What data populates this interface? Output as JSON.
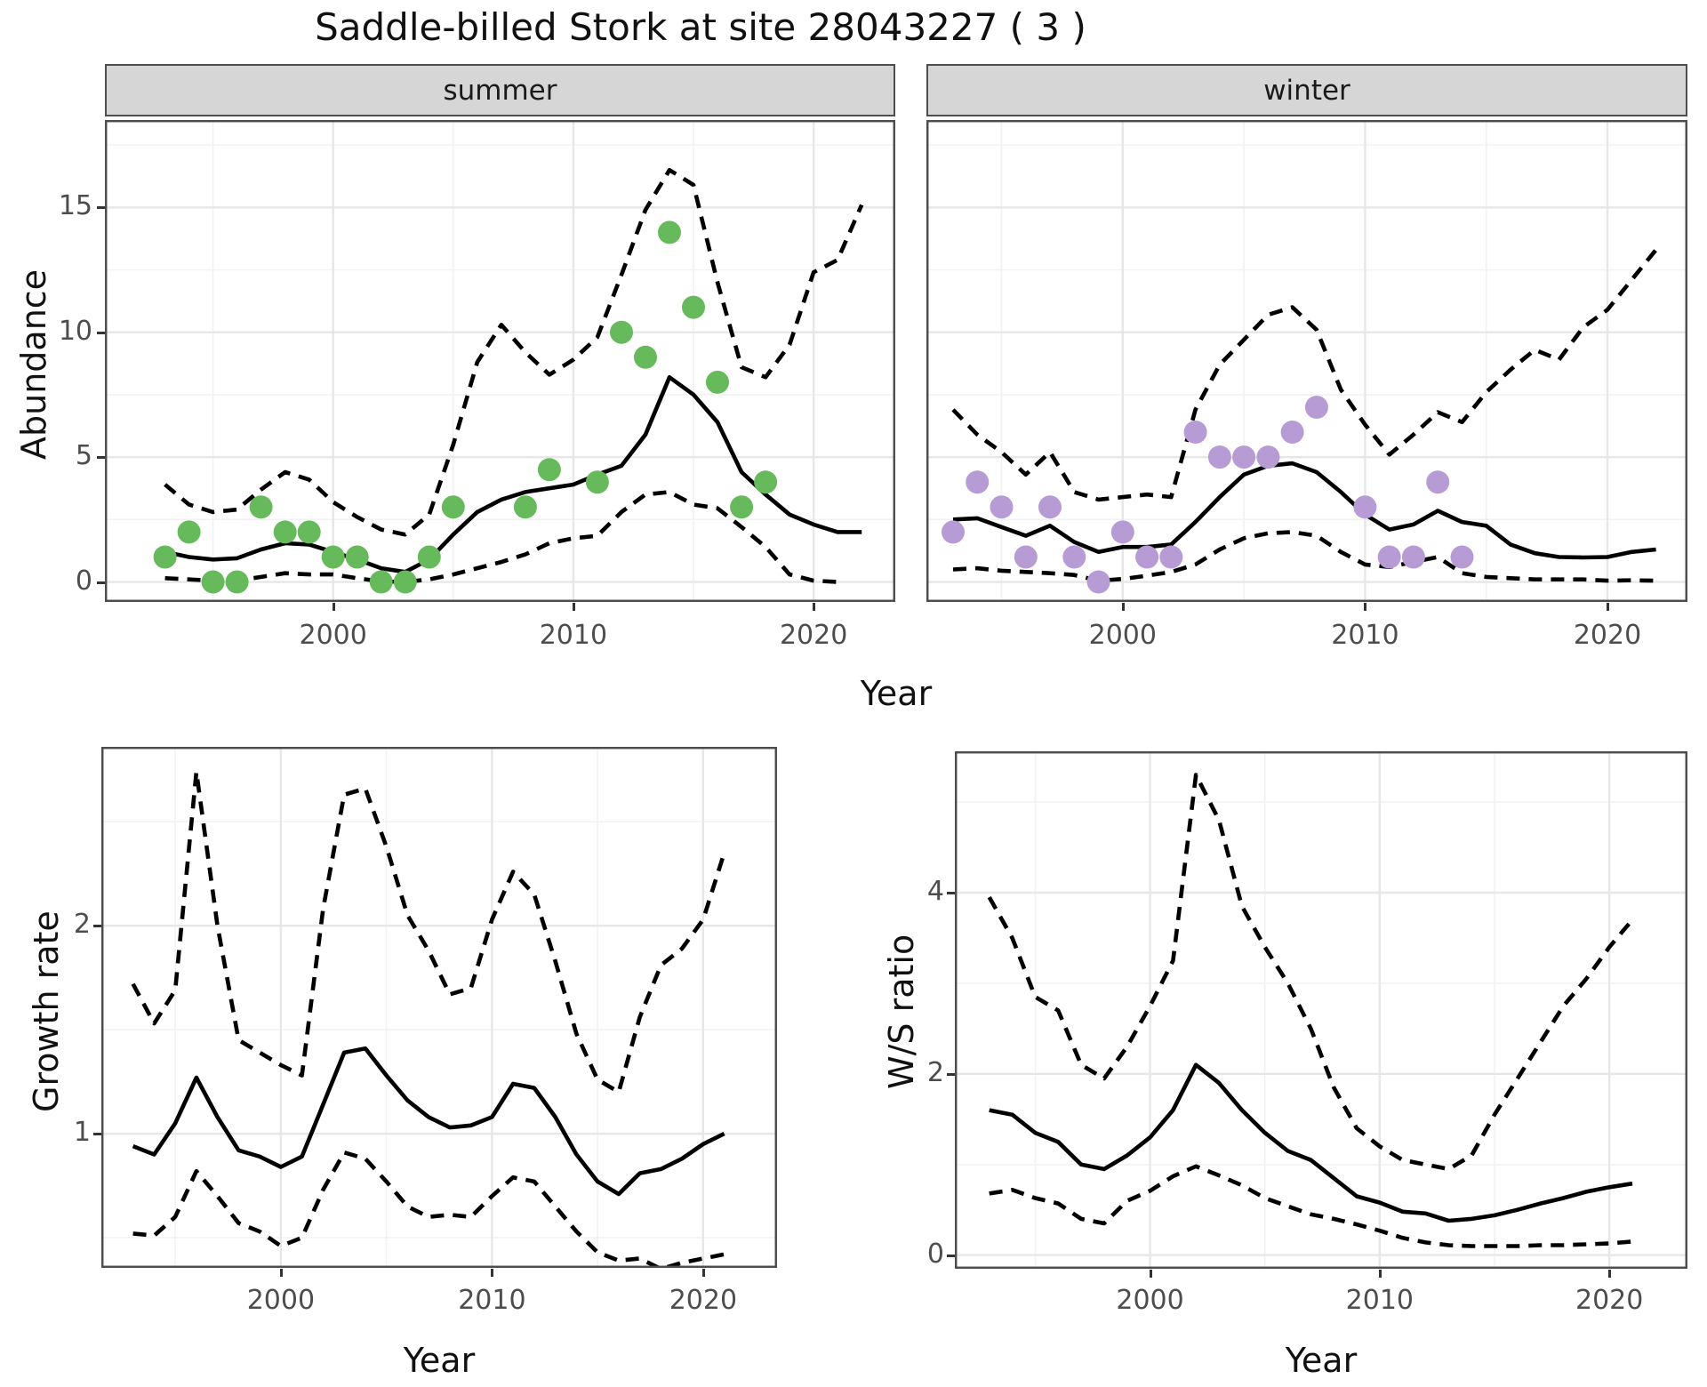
{
  "title": "Saddle-billed Stork at site 28043227 ( 3 )",
  "figure": {
    "xlabel": "Year",
    "top_row_ylabel": "Abundance",
    "facets": [
      "summer",
      "winter"
    ],
    "point_colors": {
      "summer": "#67ba5b",
      "winter": "#b79bd4"
    },
    "line_color": "#000000"
  },
  "chart_data": [
    {
      "panel": "abundance-summer",
      "type": "line",
      "facet_label": "summer",
      "xlabel": "Year",
      "ylabel": "Abundance",
      "xlim": [
        1990.5,
        2023.4
      ],
      "ylim": [
        -0.8,
        18.5
      ],
      "x_major_ticks": [
        2000,
        2010,
        2020
      ],
      "x_minor_ticks": [
        1995,
        2005,
        2015
      ],
      "y_major_ticks": [
        0,
        5,
        10,
        15
      ],
      "y_minor_ticks": [
        2.5,
        7.5,
        12.5,
        17.5
      ],
      "grid": true,
      "series": [
        {
          "name": "median_fit",
          "line": "solid",
          "years": [
            1993,
            1994,
            1995,
            1996,
            1997,
            1998,
            1999,
            2000,
            2001,
            2002,
            2003,
            2004,
            2005,
            2006,
            2007,
            2008,
            2009,
            2010,
            2011,
            2012,
            2013,
            2014,
            2015,
            2016,
            2017,
            2018,
            2019,
            2020,
            2021,
            2022
          ],
          "values": [
            1.2,
            1.0,
            0.9,
            0.95,
            1.3,
            1.55,
            1.5,
            1.2,
            0.9,
            0.55,
            0.4,
            0.9,
            1.9,
            2.8,
            3.3,
            3.6,
            3.75,
            3.9,
            4.3,
            4.65,
            5.9,
            8.2,
            7.5,
            6.4,
            4.4,
            3.5,
            2.7,
            2.3,
            2.0,
            2.0
          ]
        },
        {
          "name": "upper_ci",
          "line": "dashed",
          "years": [
            1993,
            1994,
            1995,
            1996,
            1997,
            1998,
            1999,
            2000,
            2001,
            2002,
            2003,
            2004,
            2005,
            2006,
            2007,
            2008,
            2009,
            2010,
            2011,
            2012,
            2013,
            2014,
            2015,
            2016,
            2017,
            2018,
            2019,
            2020,
            2021,
            2022
          ],
          "values": [
            3.9,
            3.1,
            2.8,
            2.9,
            3.7,
            4.4,
            4.1,
            3.2,
            2.6,
            2.1,
            1.9,
            2.7,
            5.5,
            8.8,
            10.3,
            9.2,
            8.3,
            8.9,
            9.8,
            12.3,
            14.9,
            16.5,
            15.9,
            12.0,
            8.6,
            8.2,
            9.5,
            12.4,
            12.9,
            15.1
          ]
        },
        {
          "name": "lower_ci",
          "line": "dashed",
          "years": [
            1993,
            1994,
            1995,
            1996,
            1997,
            1998,
            1999,
            2000,
            2001,
            2002,
            2003,
            2004,
            2005,
            2006,
            2007,
            2008,
            2009,
            2010,
            2011,
            2012,
            2013,
            2014,
            2015,
            2016,
            2017,
            2018,
            2019,
            2020,
            2021
          ],
          "values": [
            0.15,
            0.1,
            0.05,
            0.05,
            0.2,
            0.35,
            0.3,
            0.3,
            0.15,
            0.02,
            0.0,
            0.1,
            0.3,
            0.55,
            0.8,
            1.1,
            1.55,
            1.75,
            1.85,
            2.8,
            3.5,
            3.6,
            3.1,
            2.95,
            2.2,
            1.4,
            0.3,
            0.05,
            0.0
          ]
        }
      ],
      "points": {
        "name": "observed_counts",
        "color": "#67ba5b",
        "years": [
          1993,
          1994,
          1995,
          1996,
          1997,
          1998,
          1999,
          2000,
          2001,
          2002,
          2003,
          2004,
          2005,
          2008,
          2009,
          2011,
          2012,
          2013,
          2014,
          2015,
          2016,
          2017,
          2018
        ],
        "values": [
          1,
          2,
          0,
          0,
          3,
          2,
          2,
          1,
          1,
          0,
          0,
          1,
          3,
          3,
          4.5,
          4,
          10,
          9,
          14,
          11,
          8,
          3,
          4
        ]
      }
    },
    {
      "panel": "abundance-winter",
      "type": "line",
      "facet_label": "winter",
      "xlabel": "Year",
      "ylabel": "Abundance",
      "xlim": [
        1991.9,
        2023.3
      ],
      "ylim": [
        -0.8,
        18.5
      ],
      "x_major_ticks": [
        2000,
        2010,
        2020
      ],
      "x_minor_ticks": [
        1995,
        2005,
        2015
      ],
      "y_major_ticks": [
        0,
        5,
        10,
        15
      ],
      "y_minor_ticks": [
        2.5,
        7.5,
        12.5,
        17.5
      ],
      "grid": true,
      "series": [
        {
          "name": "median_fit",
          "line": "solid",
          "years": [
            1993,
            1994,
            1995,
            1996,
            1997,
            1998,
            1999,
            2000,
            2001,
            2002,
            2003,
            2004,
            2005,
            2006,
            2007,
            2008,
            2009,
            2010,
            2011,
            2012,
            2013,
            2014,
            2015,
            2016,
            2017,
            2018,
            2019,
            2020,
            2021,
            2022
          ],
          "values": [
            2.5,
            2.55,
            2.2,
            1.85,
            2.25,
            1.6,
            1.2,
            1.4,
            1.4,
            1.5,
            2.4,
            3.4,
            4.3,
            4.65,
            4.75,
            4.4,
            3.6,
            2.7,
            2.1,
            2.3,
            2.85,
            2.4,
            2.25,
            1.5,
            1.15,
            1.0,
            0.98,
            1.0,
            1.2,
            1.3
          ]
        },
        {
          "name": "upper_ci",
          "line": "dashed",
          "years": [
            1993,
            1994,
            1995,
            1996,
            1997,
            1998,
            1999,
            2000,
            2001,
            2002,
            2003,
            2004,
            2005,
            2006,
            2007,
            2008,
            2009,
            2010,
            2011,
            2012,
            2013,
            2014,
            2015,
            2016,
            2017,
            2018,
            2019,
            2020,
            2021,
            2022
          ],
          "values": [
            6.9,
            5.9,
            5.2,
            4.3,
            5.2,
            3.6,
            3.3,
            3.4,
            3.5,
            3.4,
            6.9,
            8.7,
            9.7,
            10.7,
            11.0,
            10.1,
            7.7,
            6.3,
            5.1,
            5.9,
            6.8,
            6.4,
            7.6,
            8.5,
            9.3,
            8.9,
            10.2,
            10.9,
            12.1,
            13.3
          ]
        },
        {
          "name": "lower_ci",
          "line": "dashed",
          "years": [
            1993,
            1994,
            1995,
            1996,
            1997,
            1998,
            1999,
            2000,
            2001,
            2002,
            2003,
            2004,
            2005,
            2006,
            2007,
            2008,
            2009,
            2010,
            2011,
            2012,
            2013,
            2014,
            2015,
            2016,
            2017,
            2018,
            2019,
            2020,
            2021,
            2022
          ],
          "values": [
            0.5,
            0.55,
            0.45,
            0.4,
            0.35,
            0.28,
            0.05,
            0.12,
            0.25,
            0.4,
            0.7,
            1.3,
            1.75,
            1.95,
            2.0,
            1.85,
            1.2,
            0.7,
            0.6,
            0.8,
            1.0,
            0.35,
            0.2,
            0.15,
            0.1,
            0.1,
            0.1,
            0.05,
            0.07,
            0.05
          ]
        }
      ],
      "points": {
        "name": "observed_counts",
        "color": "#b79bd4",
        "years": [
          1993,
          1994,
          1995,
          1996,
          1997,
          1998,
          1999,
          2000,
          2001,
          2002,
          2003,
          2004,
          2005,
          2006,
          2007,
          2008,
          2010,
          2011,
          2012,
          2013,
          2014
        ],
        "values": [
          2,
          4,
          3,
          1,
          3,
          1,
          0,
          2,
          1,
          1,
          6,
          5,
          5,
          5,
          6,
          7,
          3,
          1,
          1,
          4,
          1
        ]
      }
    },
    {
      "panel": "growth-rate",
      "type": "line",
      "facet_label": "",
      "xlabel": "Year",
      "ylabel": "Growth rate",
      "xlim": [
        1991.5,
        2023.5
      ],
      "ylim": [
        0.355,
        2.86
      ],
      "x_major_ticks": [
        2000,
        2010,
        2020
      ],
      "x_minor_ticks": [
        1995,
        2005,
        2015
      ],
      "y_major_ticks": [
        1,
        2
      ],
      "y_minor_ticks": [
        0.5,
        1.5,
        2.5
      ],
      "grid": true,
      "series": [
        {
          "name": "median_fit",
          "line": "solid",
          "years": [
            1993,
            1994,
            1995,
            1996,
            1997,
            1998,
            1999,
            2000,
            2001,
            2002,
            2003,
            2004,
            2005,
            2006,
            2007,
            2008,
            2009,
            2010,
            2011,
            2012,
            2013,
            2014,
            2015,
            2016,
            2017,
            2018,
            2019,
            2020,
            2021
          ],
          "values": [
            0.94,
            0.9,
            1.05,
            1.27,
            1.08,
            0.92,
            0.89,
            0.84,
            0.89,
            1.14,
            1.39,
            1.41,
            1.28,
            1.16,
            1.08,
            1.03,
            1.04,
            1.08,
            1.24,
            1.22,
            1.08,
            0.9,
            0.77,
            0.71,
            0.81,
            0.83,
            0.88,
            0.95,
            1.0
          ]
        },
        {
          "name": "upper_ci",
          "line": "dashed",
          "years": [
            1993,
            1994,
            1995,
            1996,
            1997,
            1998,
            1999,
            2000,
            2001,
            2002,
            2003,
            2004,
            2005,
            2006,
            2007,
            2008,
            2009,
            2010,
            2011,
            2012,
            2013,
            2014,
            2015,
            2016,
            2017,
            2018,
            2019,
            2020,
            2021
          ],
          "values": [
            1.72,
            1.53,
            1.69,
            2.74,
            2.0,
            1.45,
            1.39,
            1.33,
            1.28,
            2.08,
            2.63,
            2.66,
            2.38,
            2.05,
            1.88,
            1.67,
            1.7,
            2.03,
            2.26,
            2.15,
            1.83,
            1.48,
            1.26,
            1.2,
            1.56,
            1.81,
            1.89,
            2.03,
            2.35
          ]
        },
        {
          "name": "lower_ci",
          "line": "dashed",
          "years": [
            1993,
            1994,
            1995,
            1996,
            1997,
            1998,
            1999,
            2000,
            2001,
            2002,
            2003,
            2004,
            2005,
            2006,
            2007,
            2008,
            2009,
            2010,
            2011,
            2012,
            2013,
            2014,
            2015,
            2016,
            2017,
            2018,
            2019,
            2020,
            2021
          ],
          "values": [
            0.52,
            0.51,
            0.6,
            0.82,
            0.7,
            0.57,
            0.53,
            0.46,
            0.5,
            0.73,
            0.91,
            0.88,
            0.77,
            0.65,
            0.6,
            0.61,
            0.6,
            0.7,
            0.79,
            0.77,
            0.65,
            0.53,
            0.43,
            0.39,
            0.4,
            0.35,
            0.38,
            0.4,
            0.42
          ]
        }
      ],
      "points": null
    },
    {
      "panel": "ws-ratio",
      "type": "line",
      "facet_label": "",
      "xlabel": "Year",
      "ylabel": "W/S ratio",
      "xlim": [
        1991.5,
        2023.4
      ],
      "ylim": [
        -0.15,
        5.56
      ],
      "x_major_ticks": [
        2000,
        2010,
        2020
      ],
      "x_minor_ticks": [
        1995,
        2005,
        2015
      ],
      "y_major_ticks": [
        0,
        2,
        4
      ],
      "y_minor_ticks": [
        1,
        3,
        5
      ],
      "grid": true,
      "series": [
        {
          "name": "median_fit",
          "line": "solid",
          "years": [
            1993,
            1994,
            1995,
            1996,
            1997,
            1998,
            1999,
            2000,
            2001,
            2002,
            2003,
            2004,
            2005,
            2006,
            2007,
            2008,
            2009,
            2010,
            2011,
            2012,
            2013,
            2014,
            2015,
            2016,
            2017,
            2018,
            2019,
            2020,
            2021
          ],
          "values": [
            1.6,
            1.55,
            1.35,
            1.25,
            1.0,
            0.95,
            1.1,
            1.3,
            1.6,
            2.1,
            1.9,
            1.6,
            1.35,
            1.15,
            1.05,
            0.85,
            0.65,
            0.58,
            0.48,
            0.46,
            0.38,
            0.4,
            0.44,
            0.5,
            0.57,
            0.63,
            0.7,
            0.75,
            0.79
          ]
        },
        {
          "name": "upper_ci",
          "line": "dashed",
          "years": [
            1993,
            1994,
            1995,
            1996,
            1997,
            1998,
            1999,
            2000,
            2001,
            2002,
            2003,
            2004,
            2005,
            2006,
            2007,
            2008,
            2009,
            2010,
            2011,
            2012,
            2013,
            2014,
            2015,
            2016,
            2017,
            2018,
            2019,
            2020,
            2021
          ],
          "values": [
            3.95,
            3.5,
            2.85,
            2.7,
            2.1,
            1.95,
            2.3,
            2.75,
            3.25,
            5.3,
            4.8,
            3.85,
            3.4,
            3.0,
            2.5,
            1.85,
            1.4,
            1.2,
            1.05,
            1.0,
            0.95,
            1.1,
            1.55,
            1.95,
            2.35,
            2.75,
            3.05,
            3.4,
            3.7
          ]
        },
        {
          "name": "lower_ci",
          "line": "dashed",
          "years": [
            1993,
            1994,
            1995,
            1996,
            1997,
            1998,
            1999,
            2000,
            2001,
            2002,
            2003,
            2004,
            2005,
            2006,
            2007,
            2008,
            2009,
            2010,
            2011,
            2012,
            2013,
            2014,
            2015,
            2016,
            2017,
            2018,
            2019,
            2020,
            2021
          ],
          "values": [
            0.68,
            0.72,
            0.63,
            0.57,
            0.4,
            0.35,
            0.6,
            0.71,
            0.87,
            0.98,
            0.88,
            0.77,
            0.63,
            0.54,
            0.45,
            0.4,
            0.34,
            0.27,
            0.19,
            0.14,
            0.11,
            0.1,
            0.1,
            0.1,
            0.11,
            0.11,
            0.12,
            0.13,
            0.15
          ]
        }
      ],
      "points": null
    }
  ]
}
